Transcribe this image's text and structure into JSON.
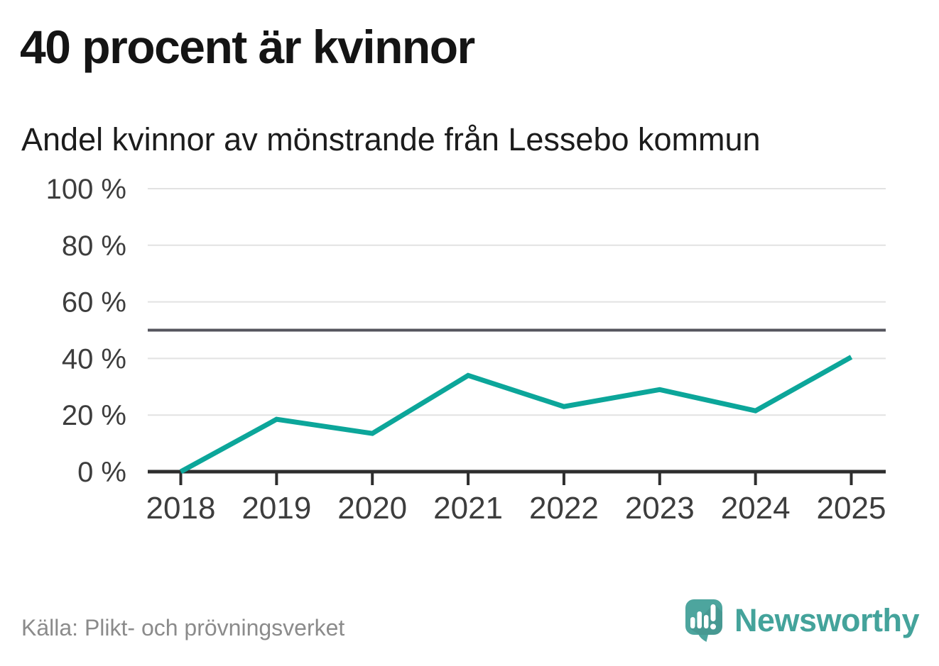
{
  "header": {
    "title": "40 procent är kvinnor",
    "subtitle": "Andel kvinnor av mönstrande från Lessebo kommun"
  },
  "footer": {
    "source": "Källa: Plikt- och prövningsverket"
  },
  "logo": {
    "wordmark": "Newsworthy",
    "mark_icon": "speech-bubble-bar-chart-exclamation-icon"
  },
  "colors": {
    "background": "#ffffff",
    "line": "#0ca69a",
    "reference_line": "#55555d",
    "gridline": "#e2e2e2",
    "axis": "#2e2e2e",
    "title_text": "#141414",
    "tick_label": "#3d3d3d",
    "source_text": "#8b8b8b",
    "logo_teal": "#4da59e",
    "wordmark_teal": "#44a39b"
  },
  "chart_data": {
    "type": "line",
    "title": "40 procent är kvinnor",
    "subtitle": "Andel kvinnor av mönstrande från Lessebo kommun",
    "source": "Källa: Plikt- och prövningsverket",
    "x": [
      "2018",
      "2019",
      "2020",
      "2021",
      "2022",
      "2023",
      "2024",
      "2025"
    ],
    "series": [
      {
        "name": "Andel kvinnor av mönstrande",
        "values": [
          0,
          18.5,
          13.5,
          34,
          23,
          29,
          21.5,
          40.5
        ]
      }
    ],
    "ylim": [
      0,
      100
    ],
    "yticks": [
      {
        "value": 0,
        "label": "0 %"
      },
      {
        "value": 20,
        "label": "20 %"
      },
      {
        "value": 40,
        "label": "40 %"
      },
      {
        "value": 60,
        "label": "60 %"
      },
      {
        "value": 80,
        "label": "80 %"
      },
      {
        "value": 100,
        "label": "100 %"
      }
    ],
    "reference_line": 50,
    "grid": true,
    "legend": "none"
  }
}
